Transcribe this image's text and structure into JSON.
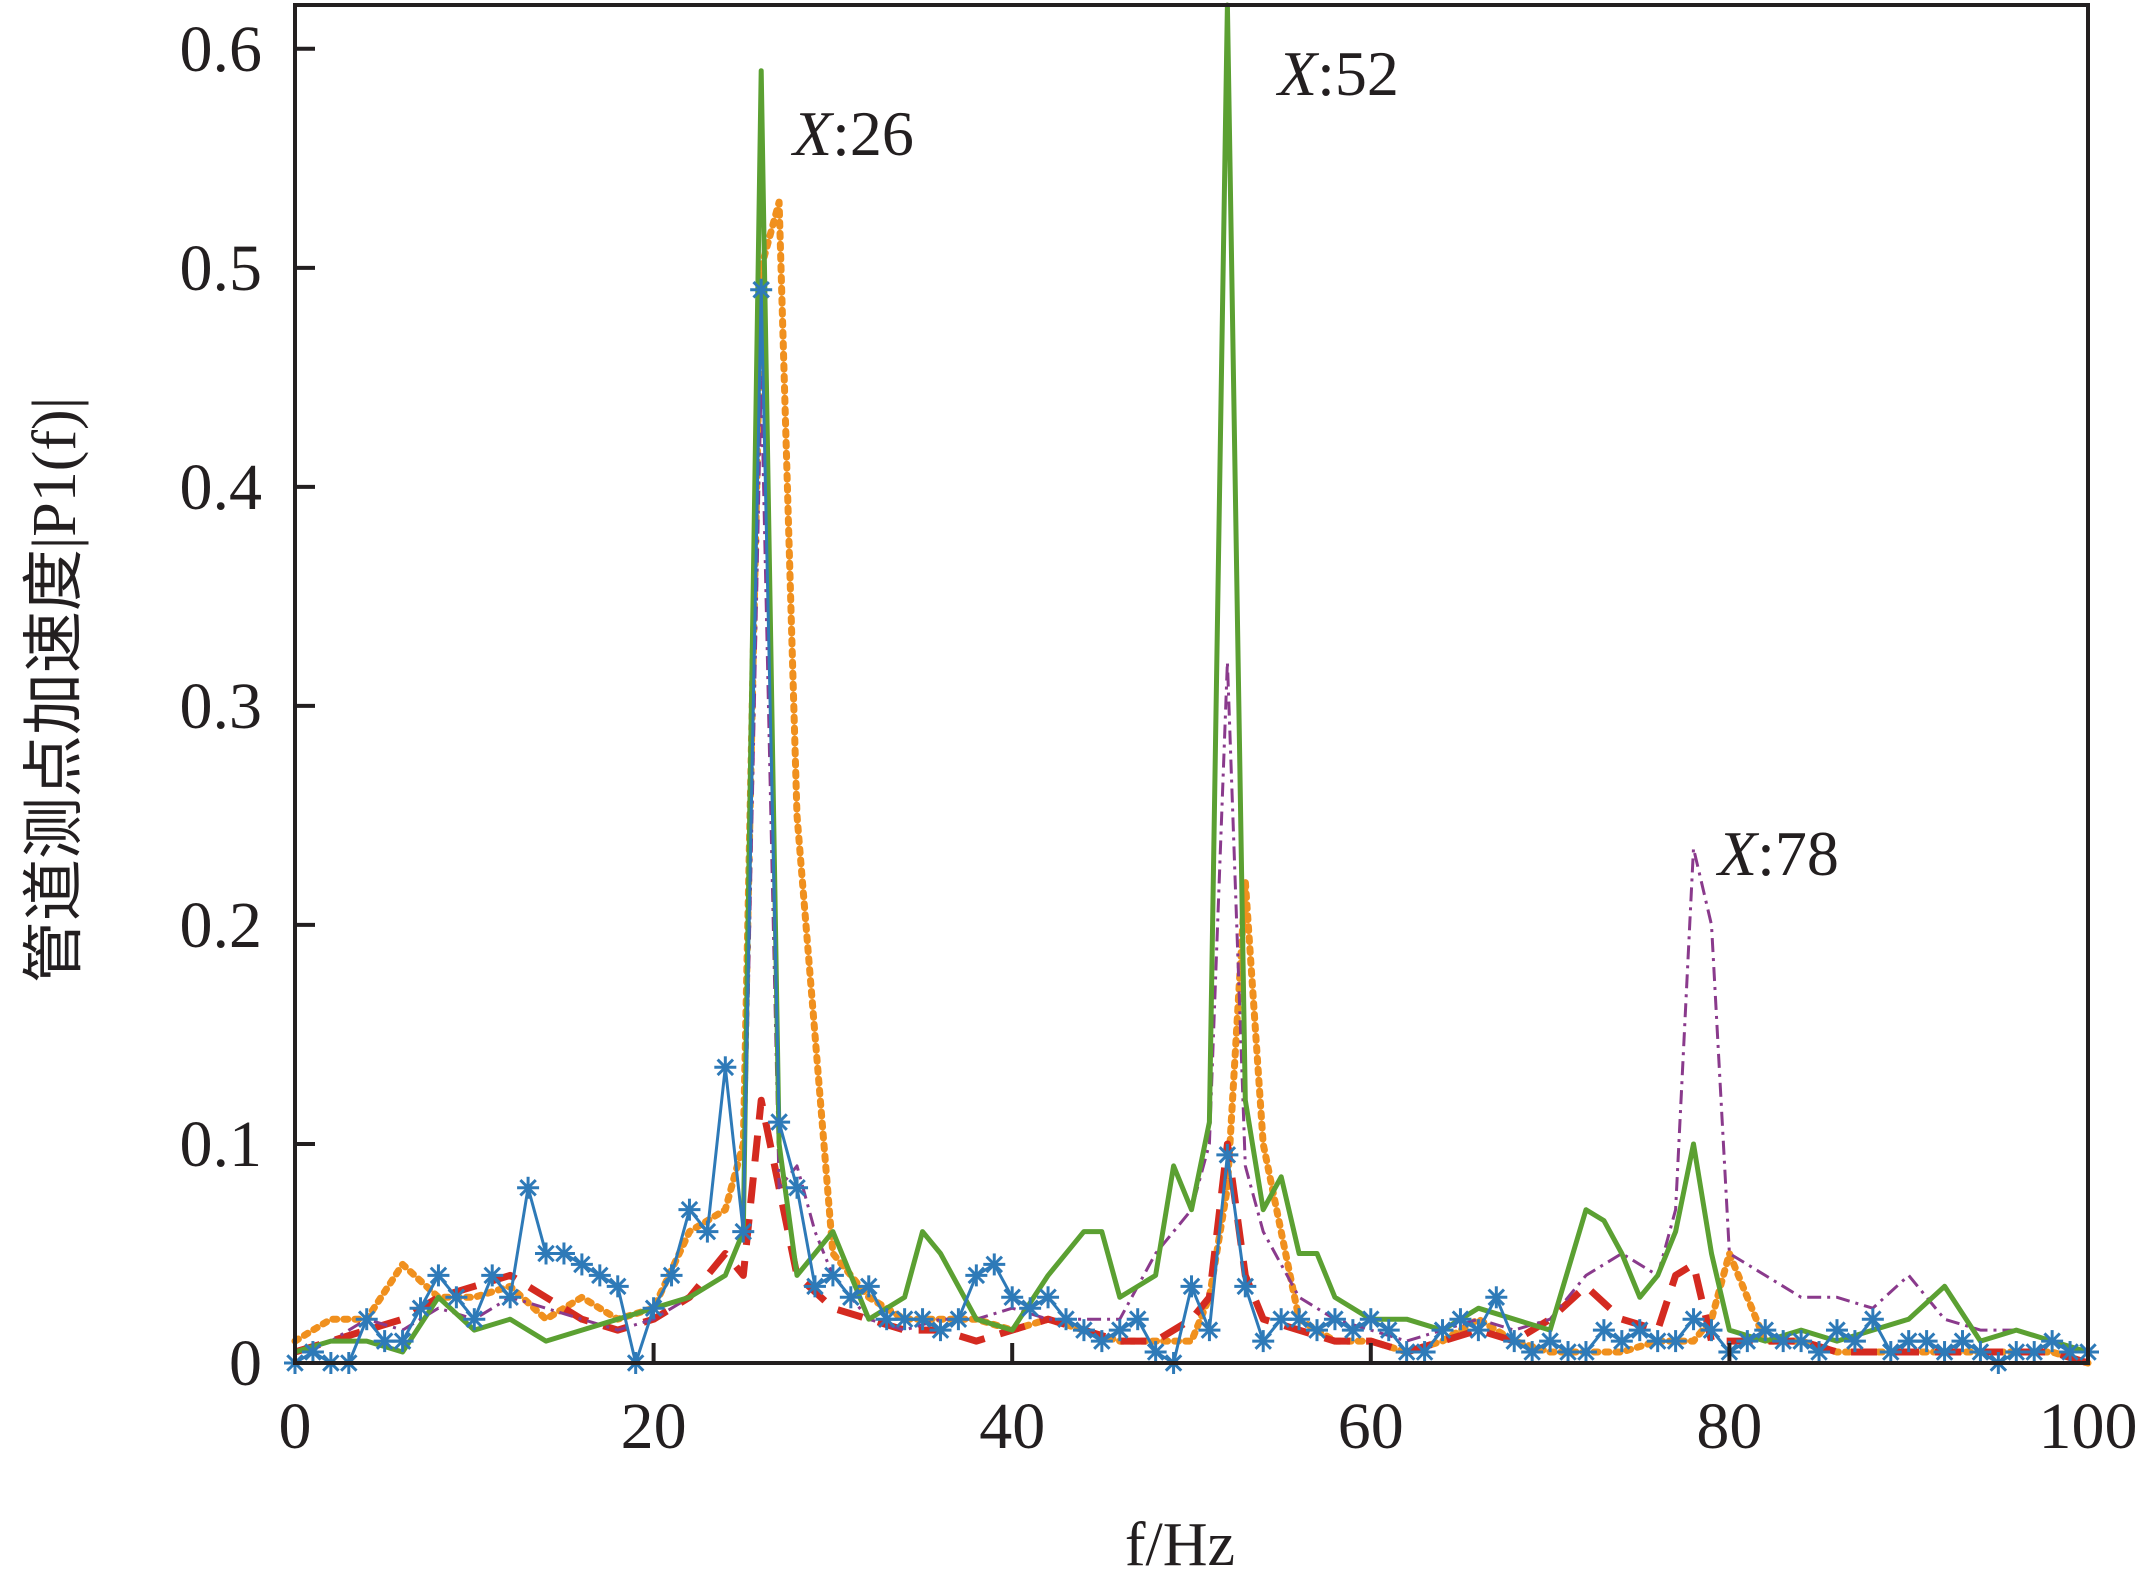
{
  "chart_data": {
    "type": "line",
    "title": "",
    "xlabel": "f/Hz",
    "ylabel": "管道测点加速度|P1(f)|",
    "xlim": [
      0,
      100
    ],
    "ylim": [
      0,
      0.62
    ],
    "x_ticks": [
      "0",
      "20",
      "40",
      "60",
      "80",
      "100"
    ],
    "y_ticks": [
      "0",
      "0.1",
      "0.2",
      "0.3",
      "0.4",
      "0.5",
      "0.6"
    ],
    "x_tick_values": [
      0,
      20,
      40,
      60,
      80,
      100
    ],
    "y_tick_values": [
      0,
      0.1,
      0.2,
      0.3,
      0.4,
      0.5,
      0.6
    ],
    "grid": false,
    "annotations": [
      {
        "italic": "X",
        "text": ":26"
      },
      {
        "italic": "X",
        "text": ":52"
      },
      {
        "italic": "X",
        "text": ":78"
      }
    ],
    "series": [
      {
        "color": "#f0901e",
        "style": "dotted",
        "x": [
          0,
          2,
          4,
          6,
          8,
          10,
          12,
          14,
          16,
          18,
          20,
          22,
          24,
          25,
          26,
          27,
          28,
          30,
          32,
          34,
          36,
          38,
          40,
          42,
          44,
          46,
          48,
          50,
          51,
          52,
          53,
          54,
          56,
          58,
          60,
          62,
          64,
          66,
          68,
          70,
          72,
          74,
          76,
          78,
          79,
          80,
          81,
          82,
          84,
          86,
          88,
          90,
          92,
          94,
          96,
          98,
          100
        ],
        "y": [
          0.01,
          0.02,
          0.02,
          0.045,
          0.03,
          0.03,
          0.035,
          0.02,
          0.03,
          0.02,
          0.025,
          0.06,
          0.07,
          0.1,
          0.5,
          0.53,
          0.25,
          0.05,
          0.03,
          0.02,
          0.02,
          0.02,
          0.015,
          0.02,
          0.015,
          0.01,
          0.01,
          0.01,
          0.03,
          0.08,
          0.22,
          0.1,
          0.02,
          0.01,
          0.01,
          0.005,
          0.01,
          0.02,
          0.01,
          0.005,
          0.005,
          0.005,
          0.01,
          0.01,
          0.02,
          0.05,
          0.03,
          0.01,
          0.01,
          0.005,
          0.005,
          0.005,
          0.005,
          0.005,
          0.005,
          0.005,
          0.0
        ]
      },
      {
        "color": "#d42a20",
        "style": "dashed",
        "x": [
          0,
          2,
          4,
          6,
          8,
          10,
          12,
          14,
          16,
          18,
          20,
          22,
          24,
          25,
          26,
          27,
          28,
          30,
          32,
          34,
          36,
          38,
          40,
          42,
          44,
          46,
          48,
          50,
          51,
          52,
          53,
          54,
          56,
          58,
          60,
          62,
          64,
          66,
          68,
          70,
          72,
          74,
          76,
          77,
          78,
          79,
          80,
          82,
          84,
          86,
          88,
          90,
          92,
          94,
          96,
          98,
          100
        ],
        "y": [
          0.005,
          0.01,
          0.015,
          0.02,
          0.03,
          0.035,
          0.04,
          0.03,
          0.02,
          0.015,
          0.02,
          0.03,
          0.05,
          0.04,
          0.12,
          0.08,
          0.04,
          0.025,
          0.02,
          0.015,
          0.015,
          0.01,
          0.015,
          0.02,
          0.015,
          0.01,
          0.01,
          0.02,
          0.03,
          0.1,
          0.04,
          0.02,
          0.015,
          0.01,
          0.01,
          0.005,
          0.01,
          0.015,
          0.01,
          0.02,
          0.035,
          0.02,
          0.015,
          0.04,
          0.045,
          0.01,
          0.01,
          0.01,
          0.01,
          0.005,
          0.005,
          0.005,
          0.005,
          0.005,
          0.005,
          0.005,
          0.0
        ]
      },
      {
        "color": "#8a3a8c",
        "style": "dashdot",
        "x": [
          0,
          2,
          4,
          6,
          8,
          10,
          12,
          14,
          16,
          18,
          20,
          22,
          24,
          25,
          26,
          27,
          28,
          29,
          30,
          32,
          34,
          36,
          38,
          40,
          42,
          44,
          46,
          48,
          50,
          51,
          52,
          53,
          54,
          56,
          58,
          60,
          62,
          64,
          66,
          68,
          70,
          72,
          74,
          76,
          77,
          78,
          79,
          80,
          82,
          84,
          86,
          88,
          90,
          92,
          94,
          96,
          98,
          100
        ],
        "y": [
          0.005,
          0.01,
          0.02,
          0.015,
          0.025,
          0.02,
          0.03,
          0.025,
          0.02,
          0.015,
          0.02,
          0.03,
          0.04,
          0.06,
          0.45,
          0.08,
          0.09,
          0.06,
          0.04,
          0.02,
          0.015,
          0.02,
          0.02,
          0.025,
          0.02,
          0.02,
          0.02,
          0.05,
          0.07,
          0.1,
          0.32,
          0.09,
          0.06,
          0.03,
          0.02,
          0.015,
          0.01,
          0.015,
          0.02,
          0.015,
          0.02,
          0.04,
          0.05,
          0.04,
          0.07,
          0.235,
          0.2,
          0.05,
          0.04,
          0.03,
          0.03,
          0.025,
          0.04,
          0.02,
          0.015,
          0.015,
          0.01,
          0.005
        ]
      },
      {
        "color": "#5ba032",
        "style": "solid",
        "x": [
          0,
          2,
          4,
          6,
          8,
          10,
          12,
          14,
          16,
          18,
          20,
          22,
          24,
          25,
          26,
          27,
          28,
          30,
          32,
          34,
          35,
          36,
          38,
          40,
          42,
          44,
          45,
          46,
          48,
          49,
          50,
          51,
          52,
          53,
          54,
          55,
          56,
          57,
          58,
          60,
          62,
          64,
          66,
          68,
          70,
          72,
          73,
          74,
          75,
          76,
          77,
          78,
          79,
          80,
          82,
          84,
          86,
          88,
          90,
          92,
          94,
          96,
          98,
          100
        ],
        "y": [
          0.005,
          0.01,
          0.01,
          0.005,
          0.03,
          0.015,
          0.02,
          0.01,
          0.015,
          0.02,
          0.025,
          0.03,
          0.04,
          0.06,
          0.59,
          0.1,
          0.04,
          0.06,
          0.02,
          0.03,
          0.06,
          0.05,
          0.02,
          0.015,
          0.04,
          0.06,
          0.06,
          0.03,
          0.04,
          0.09,
          0.07,
          0.11,
          0.62,
          0.12,
          0.07,
          0.085,
          0.05,
          0.05,
          0.03,
          0.02,
          0.02,
          0.015,
          0.025,
          0.02,
          0.015,
          0.07,
          0.065,
          0.05,
          0.03,
          0.04,
          0.06,
          0.1,
          0.05,
          0.015,
          0.01,
          0.015,
          0.01,
          0.015,
          0.02,
          0.035,
          0.01,
          0.015,
          0.01,
          0.005
        ]
      },
      {
        "color": "#2e7ab8",
        "style": "solid-star",
        "x": [
          0,
          1,
          2,
          3,
          4,
          5,
          6,
          7,
          8,
          9,
          10,
          11,
          12,
          13,
          14,
          15,
          16,
          17,
          18,
          19,
          20,
          21,
          22,
          23,
          24,
          25,
          26,
          27,
          28,
          29,
          30,
          31,
          32,
          33,
          34,
          35,
          36,
          37,
          38,
          39,
          40,
          41,
          42,
          43,
          44,
          45,
          46,
          47,
          48,
          49,
          50,
          51,
          52,
          53,
          54,
          55,
          56,
          57,
          58,
          59,
          60,
          61,
          62,
          63,
          64,
          65,
          66,
          67,
          68,
          69,
          70,
          71,
          72,
          73,
          74,
          75,
          76,
          77,
          78,
          79,
          80,
          81,
          82,
          83,
          84,
          85,
          86,
          87,
          88,
          89,
          90,
          91,
          92,
          93,
          94,
          95,
          96,
          97,
          98,
          99,
          100
        ],
        "y": [
          0.0,
          0.005,
          0.0,
          0.0,
          0.02,
          0.01,
          0.01,
          0.025,
          0.04,
          0.03,
          0.02,
          0.04,
          0.03,
          0.08,
          0.05,
          0.05,
          0.045,
          0.04,
          0.035,
          0.0,
          0.025,
          0.04,
          0.07,
          0.06,
          0.135,
          0.06,
          0.49,
          0.11,
          0.08,
          0.035,
          0.04,
          0.03,
          0.035,
          0.02,
          0.02,
          0.02,
          0.015,
          0.02,
          0.04,
          0.045,
          0.03,
          0.025,
          0.03,
          0.02,
          0.015,
          0.01,
          0.015,
          0.02,
          0.005,
          0.0,
          0.035,
          0.015,
          0.095,
          0.035,
          0.01,
          0.02,
          0.02,
          0.015,
          0.02,
          0.015,
          0.02,
          0.015,
          0.005,
          0.005,
          0.015,
          0.02,
          0.015,
          0.03,
          0.01,
          0.005,
          0.01,
          0.005,
          0.005,
          0.015,
          0.01,
          0.015,
          0.01,
          0.01,
          0.02,
          0.015,
          0.005,
          0.01,
          0.015,
          0.01,
          0.01,
          0.005,
          0.015,
          0.01,
          0.02,
          0.005,
          0.01,
          0.01,
          0.005,
          0.01,
          0.005,
          0.0,
          0.005,
          0.005,
          0.01,
          0.005,
          0.005
        ]
      }
    ]
  }
}
